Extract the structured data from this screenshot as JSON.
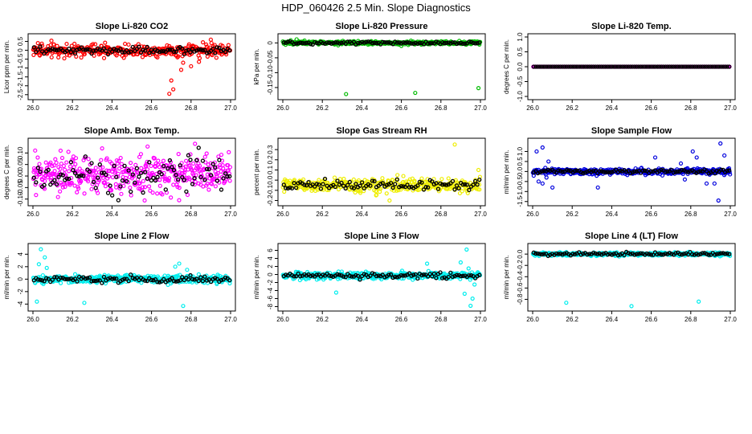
{
  "page_title": "HDP_060426  2.5 Min. Slope Diagnostics",
  "colors": {
    "frame": "#000000",
    "overlay": "#000000"
  },
  "chart_data": [
    {
      "type": "scatter",
      "title": "Slope Li-820 CO2",
      "ylabel": "Licor ppm per min.",
      "xlabel": "",
      "xlim": [
        26.0,
        27.0
      ],
      "ylim": [
        -2.6,
        0.75
      ],
      "xticks": [
        26.0,
        26.2,
        26.4,
        26.6,
        26.8,
        27.0
      ],
      "xtick_labels": [
        "26.0",
        "26.2",
        "26.4",
        "26.6",
        "26.8",
        "27.0"
      ],
      "yticks": [
        -2.5,
        -2,
        -1.5,
        -1,
        -0.5,
        0,
        0.5
      ],
      "ytick_labels": [
        "-2.5",
        "-2",
        "-1.5",
        "-1",
        "-0.5",
        "0",
        "0.5"
      ],
      "color": "#ff0000",
      "center": 0.0,
      "spread": 0.25,
      "n": 360,
      "black_spread": 0.13,
      "outliers": [
        [
          26.69,
          -2.45
        ],
        [
          26.71,
          -2.2
        ],
        [
          26.7,
          -1.7
        ],
        [
          26.75,
          -1.1
        ],
        [
          26.8,
          -0.9
        ],
        [
          26.84,
          -0.65
        ],
        [
          26.86,
          0.45
        ],
        [
          26.88,
          0.2
        ],
        [
          26.9,
          0.6
        ],
        [
          26.63,
          -0.4
        ],
        [
          26.76,
          -0.7
        ]
      ]
    },
    {
      "type": "scatter",
      "title": "Slope Li-820 Pressure",
      "ylabel": "kPa per min.",
      "xlabel": "",
      "xlim": [
        26.0,
        27.0
      ],
      "ylim": [
        -0.18,
        0.02
      ],
      "xticks": [
        26.0,
        26.2,
        26.4,
        26.6,
        26.8,
        27.0
      ],
      "xtick_labels": [
        "26.0",
        "26.2",
        "26.4",
        "26.6",
        "26.8",
        "27.0"
      ],
      "yticks": [
        0,
        -0.05,
        -0.1,
        -0.15
      ],
      "ytick_labels": [
        "0",
        "-0.05",
        "-0.10",
        "-0.15"
      ],
      "color": "#00bb00",
      "center": 0.0,
      "spread": 0.004,
      "n": 360,
      "black_spread": 0.003,
      "outliers": [
        [
          26.32,
          -0.172
        ],
        [
          26.67,
          -0.168
        ],
        [
          26.99,
          -0.152
        ],
        [
          26.04,
          0.009
        ],
        [
          26.07,
          0.012
        ],
        [
          26.11,
          0.008
        ],
        [
          26.19,
          0.006
        ],
        [
          26.28,
          -0.008
        ],
        [
          26.6,
          -0.01
        ],
        [
          26.36,
          0.006
        ]
      ]
    },
    {
      "type": "scatter",
      "title": "Slope Li-820 Temp.",
      "ylabel": "degrees C per min.",
      "xlabel": "",
      "xlim": [
        26.0,
        27.0
      ],
      "ylim": [
        -1.0,
        1.0
      ],
      "xticks": [
        26.0,
        26.2,
        26.4,
        26.6,
        26.8,
        27.0
      ],
      "xtick_labels": [
        "26.0",
        "26.2",
        "26.4",
        "26.6",
        "26.8",
        "27.0"
      ],
      "yticks": [
        -1,
        -0.5,
        0,
        0.5,
        1
      ],
      "ytick_labels": [
        "-1.0",
        "-0.5",
        "0.0",
        "0.5",
        "1.0"
      ],
      "color": "#ff00ff",
      "center": 0.0,
      "spread": 0.0,
      "n": 120,
      "black_spread": 0.0,
      "outliers": []
    },
    {
      "type": "scatter",
      "title": "Slope Amb. Box Temp.",
      "ylabel": "degrees C per min.",
      "xlabel": "",
      "xlim": [
        26.0,
        27.0
      ],
      "ylim": [
        -0.115,
        0.15
      ],
      "xticks": [
        26.0,
        26.2,
        26.4,
        26.6,
        26.8,
        27.0
      ],
      "xtick_labels": [
        "26.0",
        "26.2",
        "26.4",
        "26.6",
        "26.8",
        "27.0"
      ],
      "yticks": [
        -0.1,
        -0.05,
        0,
        0.05,
        0.1
      ],
      "ytick_labels": [
        "-0.10",
        "-0.05",
        "0.00",
        "0.05",
        "0.10"
      ],
      "color": "#ff00ff",
      "center": 0.005,
      "spread": 0.055,
      "n": 420,
      "black_spread": 0.05,
      "outliers": [
        [
          26.82,
          0.14
        ],
        [
          26.58,
          0.128
        ],
        [
          26.35,
          0.12
        ],
        [
          26.14,
          0.11
        ]
      ]
    },
    {
      "type": "scatter",
      "title": "Slope Gas Stream RH",
      "ylabel": "percent per min.",
      "xlabel": "",
      "xlim": [
        26.0,
        27.0
      ],
      "ylim": [
        -0.22,
        0.38
      ],
      "xticks": [
        26.0,
        26.2,
        26.4,
        26.6,
        26.8,
        27.0
      ],
      "xtick_labels": [
        "26.0",
        "26.2",
        "26.4",
        "26.6",
        "26.8",
        "27.0"
      ],
      "yticks": [
        -0.2,
        -0.1,
        0,
        0.1,
        0.2,
        0.3
      ],
      "ytick_labels": [
        "-0.2",
        "-0.1",
        "0.0",
        "0.1",
        "0.2",
        "0.3"
      ],
      "color": "#eeee00",
      "center": -0.05,
      "spread": 0.045,
      "n": 380,
      "black_spread": 0.035,
      "outliers": [
        [
          26.87,
          0.35
        ],
        [
          26.54,
          -0.2
        ],
        [
          26.58,
          0.05
        ],
        [
          26.61,
          0.04
        ],
        [
          26.99,
          0.1
        ]
      ]
    },
    {
      "type": "scatter",
      "title": "Slope Sample Flow",
      "ylabel": "ml/min per min.",
      "xlabel": "",
      "xlim": [
        26.0,
        27.0
      ],
      "ylim": [
        -1.55,
        1.5
      ],
      "xticks": [
        26.0,
        26.2,
        26.4,
        26.6,
        26.8,
        27.0
      ],
      "xtick_labels": [
        "26.0",
        "26.2",
        "26.4",
        "26.6",
        "26.8",
        "27.0"
      ],
      "yticks": [
        -1.5,
        -1,
        -0.5,
        0,
        0.5,
        1
      ],
      "ytick_labels": [
        "-1.5",
        "-1.0",
        "-0.5",
        "0.0",
        "0.5",
        "1.0"
      ],
      "color": "#0000dd",
      "center": 0.0,
      "spread": 0.1,
      "n": 400,
      "black_spread": 0.06,
      "outliers": [
        [
          26.02,
          1.0
        ],
        [
          26.05,
          1.2
        ],
        [
          26.03,
          -0.5
        ],
        [
          26.05,
          -0.6
        ],
        [
          26.07,
          -0.3
        ],
        [
          26.08,
          0.5
        ],
        [
          26.1,
          -0.8
        ],
        [
          26.33,
          -0.8
        ],
        [
          26.62,
          0.7
        ],
        [
          26.81,
          1.0
        ],
        [
          26.83,
          0.7
        ],
        [
          26.88,
          -0.6
        ],
        [
          26.92,
          -0.6
        ],
        [
          26.95,
          1.4
        ],
        [
          26.97,
          0.8
        ],
        [
          26.94,
          -1.45
        ],
        [
          26.75,
          0.4
        ],
        [
          26.77,
          -0.4
        ]
      ]
    },
    {
      "type": "scatter",
      "title": "Slope Line 2 Flow",
      "ylabel": "ml/min per min.",
      "xlabel": "",
      "xlim": [
        26.0,
        27.0
      ],
      "ylim": [
        -4.6,
        5.2
      ],
      "xticks": [
        26.0,
        26.2,
        26.4,
        26.6,
        26.8,
        27.0
      ],
      "xtick_labels": [
        "26.0",
        "26.2",
        "26.4",
        "26.6",
        "26.8",
        "27.0"
      ],
      "yticks": [
        -4,
        -2,
        0,
        2,
        4
      ],
      "ytick_labels": [
        "-4",
        "-2",
        "0",
        "2",
        "4"
      ],
      "color": "#00eeee",
      "center": 0.0,
      "spread": 0.45,
      "n": 380,
      "black_spread": 0.35,
      "outliers": [
        [
          26.02,
          -3.6
        ],
        [
          26.04,
          4.8
        ],
        [
          26.06,
          3.5
        ],
        [
          26.03,
          2.4
        ],
        [
          26.07,
          1.8
        ],
        [
          26.26,
          -3.8
        ],
        [
          26.74,
          2.5
        ],
        [
          26.76,
          -4.3
        ],
        [
          26.72,
          2.0
        ],
        [
          26.78,
          1.5
        ]
      ]
    },
    {
      "type": "scatter",
      "title": "Slope Line 3 Flow",
      "ylabel": "ml/min per min.",
      "xlabel": "",
      "xlim": [
        26.0,
        27.0
      ],
      "ylim": [
        -8.3,
        6.9
      ],
      "xticks": [
        26.0,
        26.2,
        26.4,
        26.6,
        26.8,
        27.0
      ],
      "xtick_labels": [
        "26.0",
        "26.2",
        "26.4",
        "26.6",
        "26.8",
        "27.0"
      ],
      "yticks": [
        -8,
        -6,
        -4,
        -2,
        0,
        2,
        4,
        6
      ],
      "ytick_labels": [
        "-8",
        "-6",
        "-4",
        "-2",
        "0",
        "2",
        "4",
        "6"
      ],
      "color": "#00eeee",
      "center": -0.3,
      "spread": 0.6,
      "n": 380,
      "black_spread": 0.45,
      "outliers": [
        [
          26.27,
          -4.5
        ],
        [
          26.73,
          2.7
        ],
        [
          26.93,
          6.2
        ],
        [
          26.95,
          -7.8
        ],
        [
          26.96,
          -6.0
        ],
        [
          26.92,
          -4.8
        ],
        [
          26.97,
          -2.5
        ],
        [
          26.9,
          3.0
        ],
        [
          26.94,
          1.5
        ]
      ]
    },
    {
      "type": "scatter",
      "title": "Slope Line 4 (LT) Flow",
      "ylabel": "ml/min per min.",
      "xlabel": "",
      "xlim": [
        26.0,
        27.0
      ],
      "ylim": [
        -0.95,
        0.13
      ],
      "xticks": [
        26.0,
        26.2,
        26.4,
        26.6,
        26.8,
        27.0
      ],
      "xtick_labels": [
        "26.0",
        "26.2",
        "26.4",
        "26.6",
        "26.8",
        "27.0"
      ],
      "yticks": [
        0,
        -0.2,
        -0.4,
        -0.6,
        -0.8
      ],
      "ytick_labels": [
        "0.0",
        "-0.2",
        "-0.4",
        "-0.6",
        "-0.8"
      ],
      "color": "#00eeee",
      "center": 0.0,
      "spread": 0.02,
      "n": 380,
      "black_spread": 0.02,
      "outliers": [
        [
          26.17,
          -0.86
        ],
        [
          26.5,
          -0.92
        ],
        [
          26.84,
          -0.84
        ]
      ]
    }
  ]
}
